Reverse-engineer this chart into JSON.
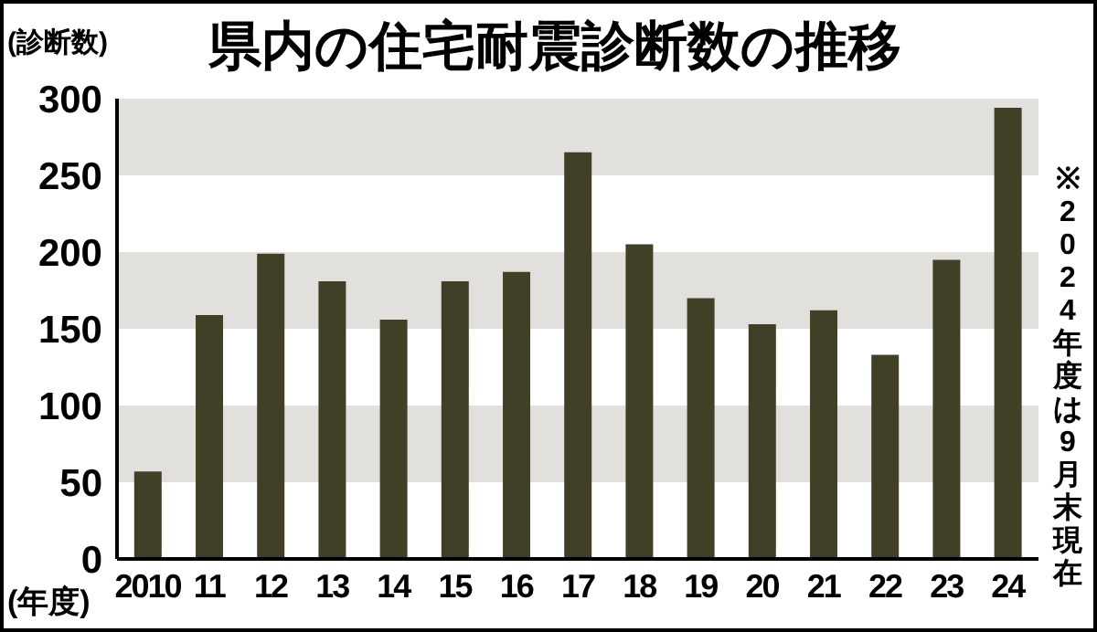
{
  "chart_data": {
    "type": "bar",
    "title": "県内の住宅耐震診断数の推移",
    "xlabel": "(年度)",
    "ylabel": "(診断数)",
    "categories": [
      "2010",
      "11",
      "12",
      "13",
      "14",
      "15",
      "16",
      "17",
      "18",
      "19",
      "20",
      "21",
      "22",
      "23",
      "24"
    ],
    "values": [
      57,
      159,
      199,
      181,
      156,
      181,
      187,
      265,
      205,
      170,
      153,
      162,
      133,
      195,
      294
    ],
    "color": "#423f27",
    "ylim": [
      0,
      300
    ],
    "yticks": [
      0,
      50,
      100,
      150,
      200,
      250,
      300
    ],
    "grid": false,
    "bands": [
      {
        "axis": "y",
        "from": 50,
        "to": 100,
        "color": "#e2e0dd"
      },
      {
        "axis": "y",
        "from": 150,
        "to": 200,
        "color": "#e2e0dd"
      },
      {
        "axis": "y",
        "from": 250,
        "to": 300,
        "color": "#e2e0dd"
      }
    ],
    "annotations": [
      "※2024年度は9月末現在"
    ]
  }
}
